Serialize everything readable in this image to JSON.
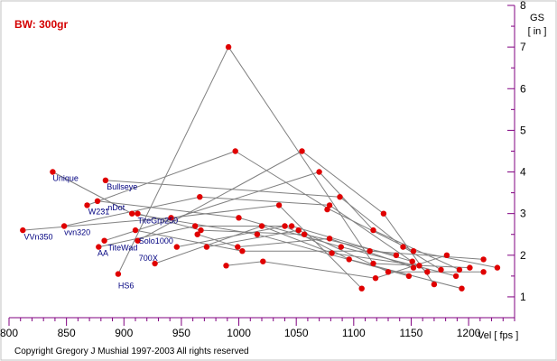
{
  "chart_data": {
    "type": "scatter",
    "title": "BW: 300gr",
    "xlabel": "Vel  [ fps ]",
    "ylabel": "GS\n[ in ]",
    "xlim": [
      800,
      1240
    ],
    "ylim": [
      0.5,
      8
    ],
    "x_ticks": [
      800,
      850,
      900,
      950,
      1000,
      1050,
      1100,
      1150,
      1200
    ],
    "y_ticks": [
      1,
      2,
      3,
      4,
      5,
      6,
      7,
      8
    ],
    "grid": false,
    "copyright": "Copyright Gregory J Mushial 1997-2003   All rights reserved",
    "colors": {
      "axis": "#800080",
      "line": "#808080",
      "point": "#e00000",
      "label": "#000080",
      "title": "#d40000"
    },
    "points": [
      {
        "x": 838,
        "y": 4.0
      },
      {
        "x": 812,
        "y": 2.6
      },
      {
        "x": 848,
        "y": 2.7
      },
      {
        "x": 868,
        "y": 3.2
      },
      {
        "x": 877,
        "y": 3.3
      },
      {
        "x": 884,
        "y": 3.8
      },
      {
        "x": 878,
        "y": 2.2
      },
      {
        "x": 883,
        "y": 2.35
      },
      {
        "x": 895,
        "y": 1.55
      },
      {
        "x": 907,
        "y": 3.0
      },
      {
        "x": 912,
        "y": 3.0
      },
      {
        "x": 912,
        "y": 2.35
      },
      {
        "x": 910,
        "y": 2.6
      },
      {
        "x": 927,
        "y": 1.8
      },
      {
        "x": 941,
        "y": 2.9
      },
      {
        "x": 946,
        "y": 2.2
      },
      {
        "x": 962,
        "y": 2.7
      },
      {
        "x": 964,
        "y": 2.5
      },
      {
        "x": 966,
        "y": 3.4
      },
      {
        "x": 967,
        "y": 2.6
      },
      {
        "x": 972,
        "y": 2.2
      },
      {
        "x": 991,
        "y": 7.0
      },
      {
        "x": 989,
        "y": 1.75
      },
      {
        "x": 997,
        "y": 4.5
      },
      {
        "x": 999,
        "y": 2.2
      },
      {
        "x": 1000,
        "y": 2.9
      },
      {
        "x": 1003,
        "y": 2.1
      },
      {
        "x": 1016,
        "y": 2.5
      },
      {
        "x": 1021,
        "y": 1.85
      },
      {
        "x": 1020,
        "y": 2.7
      },
      {
        "x": 1035,
        "y": 3.2
      },
      {
        "x": 1040,
        "y": 2.7
      },
      {
        "x": 1046,
        "y": 2.7
      },
      {
        "x": 1052,
        "y": 2.6
      },
      {
        "x": 1055,
        "y": 4.5
      },
      {
        "x": 1057,
        "y": 2.5
      },
      {
        "x": 1070,
        "y": 4.0
      },
      {
        "x": 1077,
        "y": 3.1
      },
      {
        "x": 1079,
        "y": 2.4
      },
      {
        "x": 1079,
        "y": 3.2
      },
      {
        "x": 1081,
        "y": 2.05
      },
      {
        "x": 1088,
        "y": 3.4
      },
      {
        "x": 1089,
        "y": 2.2
      },
      {
        "x": 1096,
        "y": 1.9
      },
      {
        "x": 1107,
        "y": 1.2
      },
      {
        "x": 1114,
        "y": 2.1
      },
      {
        "x": 1117,
        "y": 1.8
      },
      {
        "x": 1119,
        "y": 1.45
      },
      {
        "x": 1117,
        "y": 2.6
      },
      {
        "x": 1126,
        "y": 3.0
      },
      {
        "x": 1130,
        "y": 1.6
      },
      {
        "x": 1137,
        "y": 2.0
      },
      {
        "x": 1143,
        "y": 2.2
      },
      {
        "x": 1148,
        "y": 1.5
      },
      {
        "x": 1152,
        "y": 2.1
      },
      {
        "x": 1151,
        "y": 1.85
      },
      {
        "x": 1152,
        "y": 1.7
      },
      {
        "x": 1157,
        "y": 1.75
      },
      {
        "x": 1164,
        "y": 1.6
      },
      {
        "x": 1170,
        "y": 1.3
      },
      {
        "x": 1176,
        "y": 1.65
      },
      {
        "x": 1181,
        "y": 2.0
      },
      {
        "x": 1189,
        "y": 1.5
      },
      {
        "x": 1192,
        "y": 1.65
      },
      {
        "x": 1194,
        "y": 1.2
      },
      {
        "x": 1201,
        "y": 1.7
      },
      {
        "x": 1213,
        "y": 1.9
      },
      {
        "x": 1213,
        "y": 1.6
      },
      {
        "x": 1225,
        "y": 1.7
      }
    ],
    "segments": [
      [
        [
          884,
          3.8
        ],
        [
          1088,
          3.4
        ],
        [
          1143,
          2.2
        ],
        [
          1176,
          1.65
        ]
      ],
      [
        [
          883,
          2.35
        ],
        [
          1070,
          4.0
        ],
        [
          1117,
          2.6
        ],
        [
          1192,
          1.65
        ]
      ],
      [
        [
          868,
          3.2
        ],
        [
          997,
          4.5
        ],
        [
          1079,
          3.1
        ],
        [
          1152,
          2.1
        ],
        [
          1225,
          1.7
        ]
      ],
      [
        [
          895,
          1.55
        ],
        [
          991,
          7.0
        ],
        [
          1117,
          1.8
        ],
        [
          1201,
          1.7
        ]
      ],
      [
        [
          912,
          2.35
        ],
        [
          1055,
          4.5
        ],
        [
          1126,
          3.0
        ],
        [
          1170,
          1.3
        ]
      ],
      [
        [
          838,
          4.0
        ],
        [
          907,
          3.0
        ],
        [
          1016,
          2.5
        ],
        [
          1148,
          1.5
        ]
      ],
      [
        [
          848,
          2.7
        ],
        [
          966,
          3.4
        ],
        [
          1079,
          3.2
        ],
        [
          1164,
          1.6
        ]
      ],
      [
        [
          812,
          2.6
        ],
        [
          941,
          2.9
        ],
        [
          1035,
          3.2
        ],
        [
          1107,
          1.2
        ]
      ],
      [
        [
          877,
          3.3
        ],
        [
          1000,
          2.9
        ],
        [
          1089,
          2.2
        ],
        [
          1189,
          1.5
        ]
      ],
      [
        [
          878,
          2.2
        ],
        [
          962,
          2.7
        ],
        [
          1046,
          2.7
        ],
        [
          1151,
          1.85
        ]
      ],
      [
        [
          910,
          2.6
        ],
        [
          1003,
          2.1
        ],
        [
          1114,
          2.1
        ],
        [
          1213,
          1.9
        ]
      ],
      [
        [
          927,
          1.8
        ],
        [
          1020,
          2.7
        ],
        [
          1081,
          2.05
        ],
        [
          1157,
          1.75
        ]
      ],
      [
        [
          912,
          3.0
        ],
        [
          967,
          2.6
        ],
        [
          1057,
          2.5
        ],
        [
          1137,
          2.0
        ]
      ],
      [
        [
          946,
          2.2
        ],
        [
          1040,
          2.7
        ],
        [
          1096,
          1.9
        ],
        [
          1194,
          1.2
        ]
      ],
      [
        [
          972,
          2.2
        ],
        [
          1052,
          2.6
        ],
        [
          1130,
          1.6
        ],
        [
          1213,
          1.6
        ]
      ],
      [
        [
          989,
          1.75
        ],
        [
          1021,
          1.85
        ],
        [
          1119,
          1.45
        ],
        [
          1181,
          2.0
        ]
      ],
      [
        [
          964,
          2.5
        ],
        [
          999,
          2.2
        ],
        [
          1079,
          2.4
        ],
        [
          1152,
          1.7
        ]
      ]
    ],
    "labels": [
      {
        "text": "Unique",
        "x": 838,
        "y": 3.78
      },
      {
        "text": "Bullseye",
        "x": 885,
        "y": 3.58
      },
      {
        "text": "W231",
        "x": 869,
        "y": 2.98
      },
      {
        "text": "...nDot",
        "x": 880,
        "y": 3.08
      },
      {
        "text": "TiteGrp250",
        "x": 912,
        "y": 2.76
      },
      {
        "text": "VVn350",
        "x": 813,
        "y": 2.38
      },
      {
        "text": "vvn320",
        "x": 848,
        "y": 2.48
      },
      {
        "text": "Solo1000",
        "x": 913,
        "y": 2.28
      },
      {
        "text": "TiteWad",
        "x": 886,
        "y": 2.12
      },
      {
        "text": "AA",
        "x": 877,
        "y": 1.99
      },
      {
        "text": "700X",
        "x": 913,
        "y": 1.87
      },
      {
        "text": "HS6",
        "x": 895,
        "y": 1.2
      }
    ]
  }
}
